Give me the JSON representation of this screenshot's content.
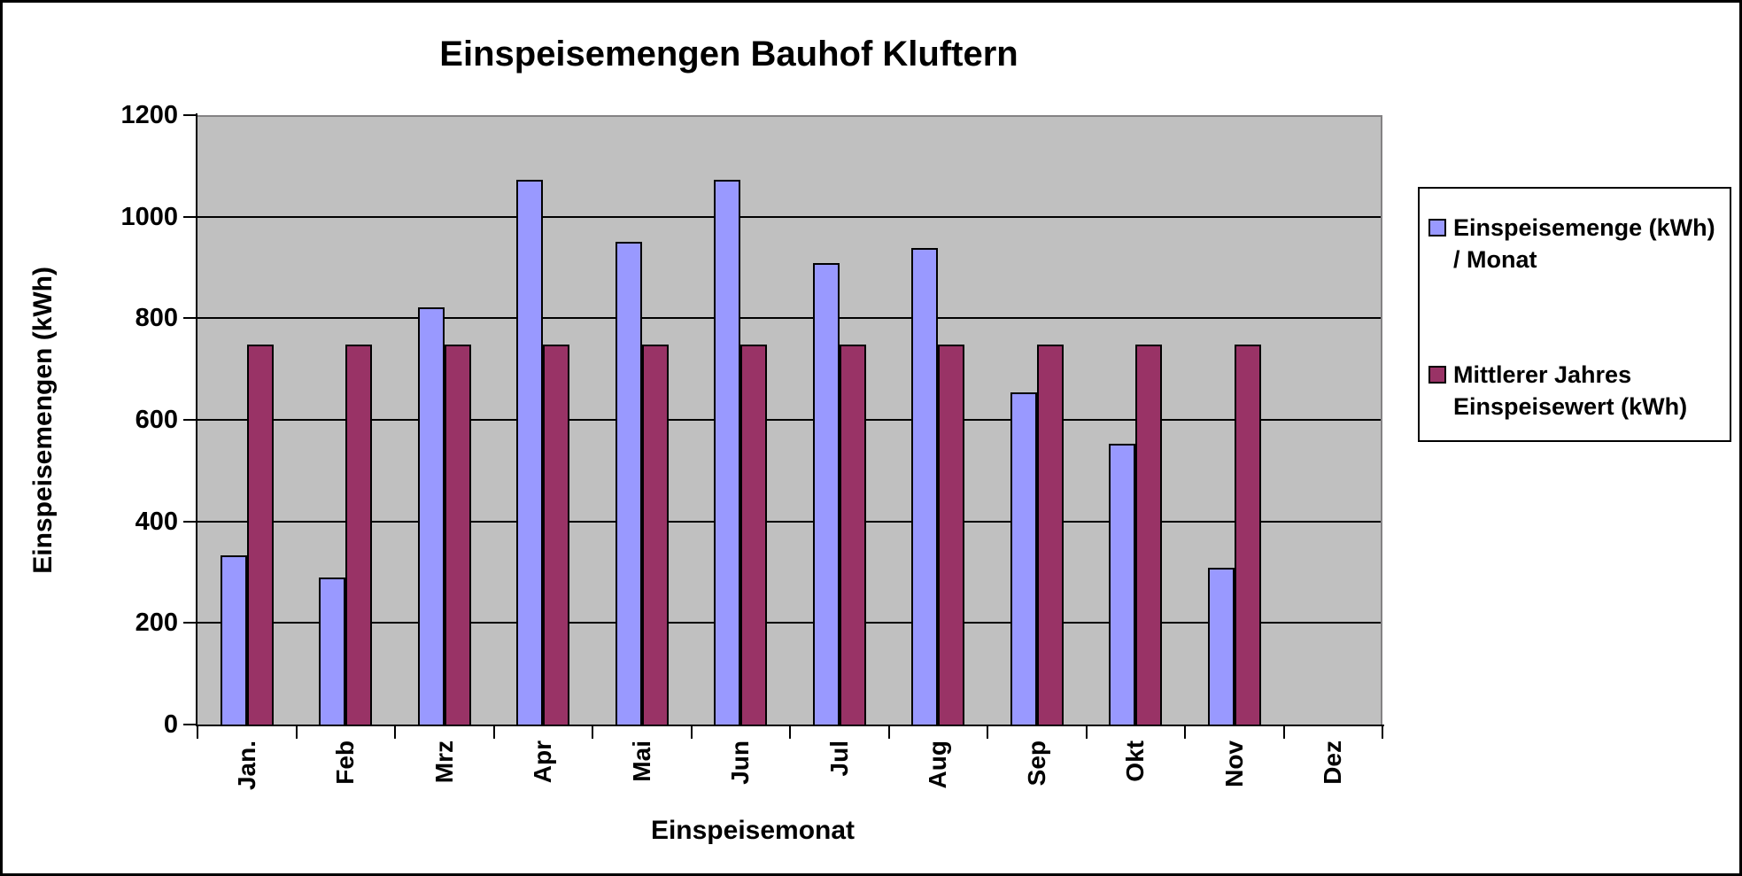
{
  "title": "Einspeisemengen Bauhof Kluftern",
  "chart_data": {
    "type": "bar",
    "title": "Einspeisemengen Bauhof Kluftern",
    "xlabel": "Einspeisemonat",
    "ylabel": "Einspeisemengen (kWh)",
    "categories": [
      "Jan.",
      "Feb",
      "Mrz",
      "Apr",
      "Mai",
      "Jun",
      "Jul",
      "Aug",
      "Sep",
      "Okt",
      "Nov",
      "Dez"
    ],
    "series": [
      {
        "name": "Einspeisemenge (kWh) / Monat",
        "color": "#9999FF",
        "values": [
          333,
          289,
          822,
          1073,
          950,
          1073,
          908,
          939,
          654,
          553,
          309,
          0
        ]
      },
      {
        "name": "Mittlerer Jahres Einspeisewert (kWh)",
        "color": "#993366",
        "values": [
          748,
          748,
          748,
          748,
          748,
          748,
          748,
          748,
          748,
          748,
          748,
          0
        ]
      }
    ],
    "ylim": [
      0,
      1200
    ],
    "y_ticks": [
      0,
      200,
      400,
      600,
      800,
      1000,
      1200
    ],
    "grid": true,
    "legend_position": "right",
    "plot_background": "#C0C0C0",
    "plot_border_color": "#848284",
    "axis_color": "#000000"
  }
}
